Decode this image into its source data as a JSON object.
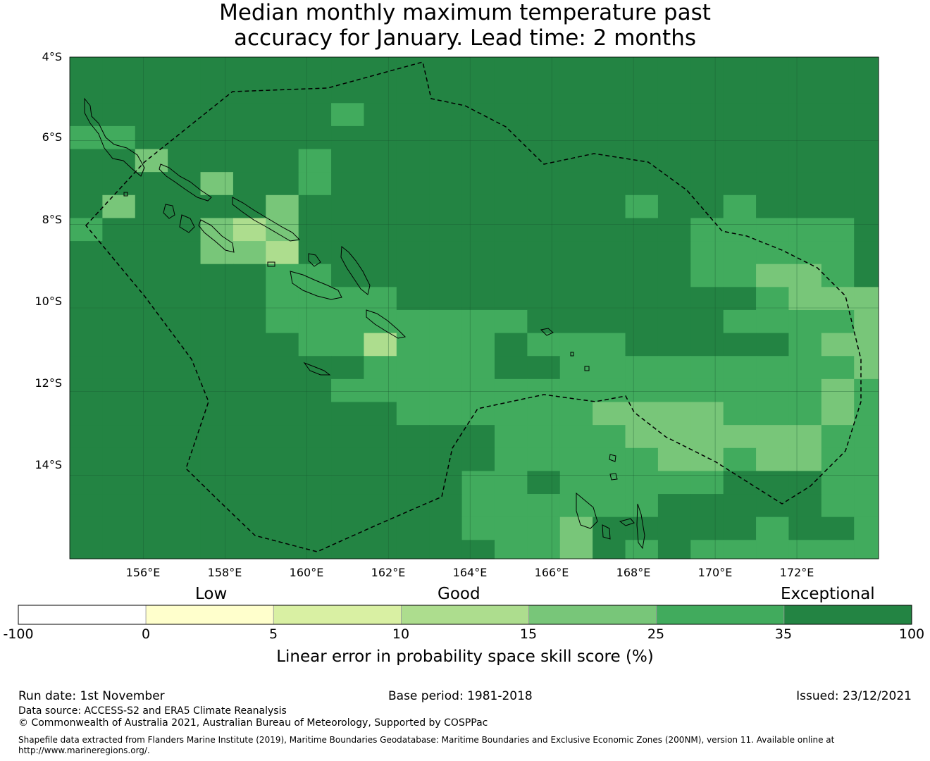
{
  "title": {
    "line1": "Median monthly maximum temperature past",
    "line2": "accuracy for January. Lead time: 2 months"
  },
  "map": {
    "lon_range": [
      154.2,
      174.0
    ],
    "lat_range": [
      -16.0,
      -4.0
    ],
    "lat_ticks": [
      {
        "value": -4,
        "label": "4°S"
      },
      {
        "value": -6,
        "label": "6°S"
      },
      {
        "value": -8,
        "label": "8°S"
      },
      {
        "value": -10,
        "label": "10°S"
      },
      {
        "value": -12,
        "label": "12°S"
      },
      {
        "value": -14,
        "label": "14°S"
      }
    ],
    "lon_ticks": [
      {
        "value": 156,
        "label": "156°E"
      },
      {
        "value": 158,
        "label": "158°E"
      },
      {
        "value": 160,
        "label": "160°E"
      },
      {
        "value": 162,
        "label": "162°E"
      },
      {
        "value": 164,
        "label": "164°E"
      },
      {
        "value": 166,
        "label": "166°E"
      },
      {
        "value": 168,
        "label": "168°E"
      },
      {
        "value": 170,
        "label": "170°E"
      },
      {
        "value": 172,
        "label": "172°E"
      }
    ],
    "eez_boundary_color": "#000000",
    "grid": {
      "row_lats": [
        -4.0,
        -4.55,
        -5.1,
        -5.65,
        -6.2,
        -6.75,
        -7.3,
        -7.85,
        -8.4,
        -8.95,
        -9.5,
        -10.05,
        -10.6,
        -11.15,
        -11.7,
        -12.25,
        -12.8,
        -13.35,
        -13.9,
        -14.45,
        -15.0,
        -15.55,
        -16.0
      ],
      "col_lons": [
        154.2,
        155.0,
        155.8,
        156.6,
        157.4,
        158.2,
        159.0,
        159.8,
        160.6,
        161.4,
        162.2,
        163.0,
        163.8,
        164.6,
        165.4,
        166.2,
        167.0,
        167.8,
        168.6,
        169.4,
        170.2,
        171.0,
        171.8,
        172.6,
        173.4,
        174.0
      ],
      "codes": [
        "6666666666666666666666666",
        "6666666666666666666666666",
        "6666666656666666666666666",
        "5566666666666666666666666",
        "6646666566666666666666666",
        "6666466566666666666666666",
        "6466664666666666656656666",
        "5666434666666666666555556",
        "6666443666666666666555556",
        "6666665566666666666554456",
        "6666665555666666666665444",
        "6666665555555566666655554",
        "6666666553555655566666544",
        "6666666665555665555555554",
        "6666666655555555555555545",
        "6666666666555555444455545",
        "6666666666666555544444455",
        "6666666666666555554454455",
        "6666666666665565555566655",
        "6666666666665555556666655",
        "6666666666665554666665665",
        "6666666666666554656555555"
      ]
    }
  },
  "colorbar": {
    "colors": [
      "#ffffff",
      "#ffffcc",
      "#d9f0a3",
      "#addd8e",
      "#78c679",
      "#41ab5d",
      "#238443"
    ],
    "ticks": [
      "-100",
      "0",
      "5",
      "10",
      "15",
      "25",
      "35",
      "100"
    ],
    "categories": {
      "low": "Low",
      "good": "Good",
      "exceptional": "Exceptional"
    },
    "label": "Linear error in probability space skill score (%)"
  },
  "footer": {
    "run_date": "Run date: 1st November",
    "base_period": "Base period: 1981-2018",
    "issued": "Issued: 23/12/2021",
    "data_source": "Data source: ACCESS-S2 and ERA5 Climate Reanalysis",
    "copyright": "© Commonwealth of Australia 2021, Australian Bureau of Meteorology, Supported by COSPPac",
    "shapefile_line1": "Shapefile data extracted from Flanders Marine Institute (2019), Maritime Boundaries Geodatabase: Maritime Boundaries and Exclusive Economic Zones (200NM), version 11. Available online at",
    "shapefile_line2": "http://www.marineregions.org/."
  }
}
